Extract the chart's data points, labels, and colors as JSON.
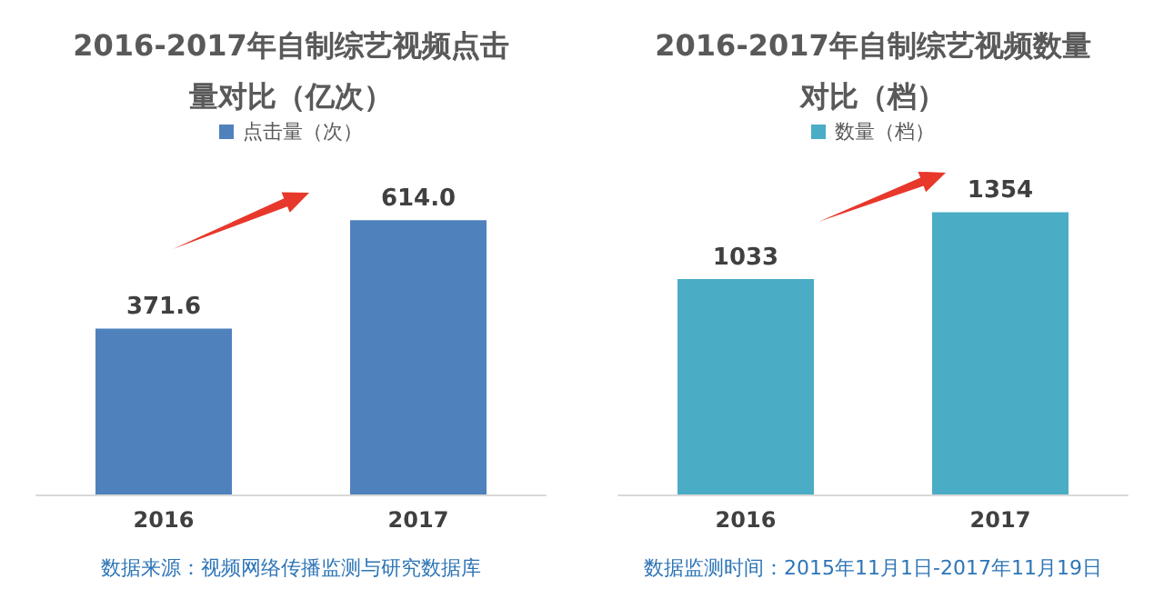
{
  "chart_data": [
    {
      "type": "bar",
      "title": "2016-2017年自制综艺视频点击量对比（亿次）",
      "categories": [
        "2016",
        "2017"
      ],
      "series": [
        {
          "name": "点击量（次）",
          "color": "#4f81bd",
          "values": [
            371.6,
            614.0
          ],
          "value_labels": [
            "371.6",
            "614.0"
          ]
        }
      ],
      "legend": "top",
      "grid": false,
      "annotations": [
        "数据来源：视频网络传播监测与研究数据库"
      ]
    },
    {
      "type": "bar",
      "title": "2016-2017年自制综艺视频数量对比（档）",
      "categories": [
        "2016",
        "2017"
      ],
      "series": [
        {
          "name": "数量（档）",
          "color": "#4bacc6",
          "values": [
            1033,
            1354
          ],
          "value_labels": [
            "1033",
            "1354"
          ]
        }
      ],
      "legend": "top",
      "grid": false,
      "annotations": [
        "数据监测时间：2015年11月1日-2017年11月19日"
      ]
    }
  ]
}
